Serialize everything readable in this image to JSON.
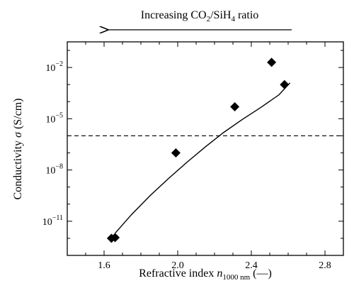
{
  "chart_data": {
    "type": "scatter",
    "annotation": {
      "text_pre": "Increasing CO",
      "sub1": "2",
      "text_mid": "/SiH",
      "sub2": "4",
      "text_post": " ratio"
    },
    "xlabel": {
      "pre": "Refractive index ",
      "var": "n",
      "sub": "1000 nm",
      "post": " (—)"
    },
    "ylabel": {
      "pre": "Conductivity ",
      "var": "σ",
      "post": " (S/cm)"
    },
    "xlim": [
      1.4,
      2.9
    ],
    "ylim_log10": [
      -13,
      -0.5
    ],
    "log_y": true,
    "x_ticks": [
      {
        "value": 1.6,
        "label": "1.6"
      },
      {
        "value": 2.0,
        "label": "2.0"
      },
      {
        "value": 2.4,
        "label": "2.4"
      },
      {
        "value": 2.8,
        "label": "2.8"
      }
    ],
    "y_ticks": [
      {
        "exp": -11,
        "base": "10",
        "sup": "−11"
      },
      {
        "exp": -8,
        "base": "10",
        "sup": "−8"
      },
      {
        "exp": -5,
        "base": "10",
        "sup": "−5"
      },
      {
        "exp": -2,
        "base": "10",
        "sup": "−2"
      }
    ],
    "points": [
      {
        "x": 1.64,
        "y": 1e-12
      },
      {
        "x": 1.66,
        "y": 1.1e-12
      },
      {
        "x": 1.99,
        "y": 1e-07
      },
      {
        "x": 2.31,
        "y": 5e-05
      },
      {
        "x": 2.51,
        "y": 0.02
      },
      {
        "x": 2.58,
        "y": 0.001
      }
    ],
    "fit_curve": {
      "x": [
        1.66,
        1.75,
        1.85,
        1.95,
        2.05,
        2.15,
        2.25,
        2.35,
        2.45,
        2.55,
        2.61
      ],
      "log10_y": [
        -11.7,
        -10.6,
        -9.5,
        -8.5,
        -7.55,
        -6.65,
        -5.8,
        -5.05,
        -4.35,
        -3.6,
        -2.9
      ]
    },
    "threshold": {
      "y": 1e-06,
      "style": "dashed"
    },
    "grid": false
  }
}
